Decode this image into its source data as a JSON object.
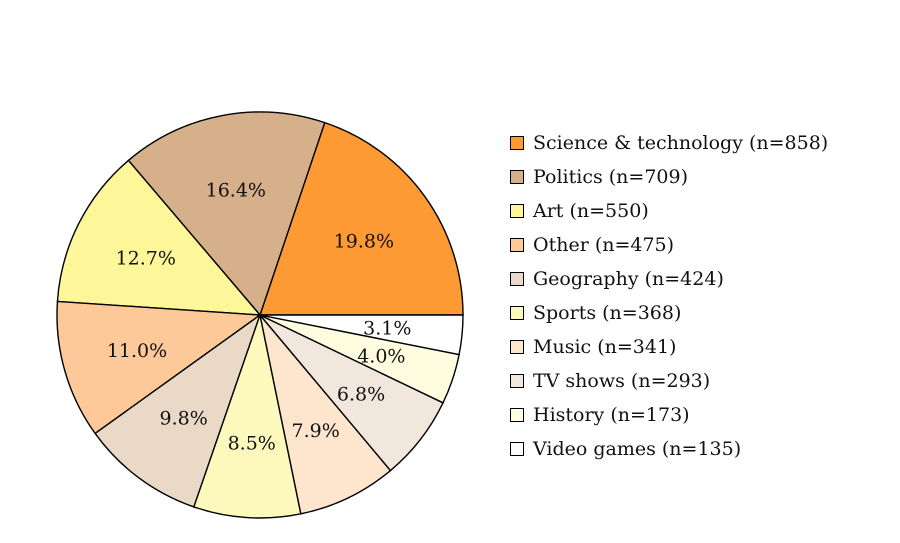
{
  "chart_data": {
    "type": "pie",
    "title": "",
    "start_angle_deg": 0,
    "direction": "counterclockwise",
    "legend_position": "right",
    "slices": [
      {
        "label": "Science & technology (n=858)",
        "category": "Science & technology",
        "n": 858,
        "percent": 19.8,
        "percent_label": "19.8%",
        "color": "#fd9a34"
      },
      {
        "label": "Politics (n=709)",
        "category": "Politics",
        "n": 709,
        "percent": 16.4,
        "percent_label": "16.4%",
        "color": "#d5b08a"
      },
      {
        "label": "Art (n=550)",
        "category": "Art",
        "n": 550,
        "percent": 12.7,
        "percent_label": "12.7%",
        "color": "#fdf79a"
      },
      {
        "label": "Other (n=475)",
        "category": "Other",
        "n": 475,
        "percent": 11.0,
        "percent_label": "11.0%",
        "color": "#fdc999"
      },
      {
        "label": "Geography (n=424)",
        "category": "Geography",
        "n": 424,
        "percent": 9.8,
        "percent_label": "9.8%",
        "color": "#e9d9c6"
      },
      {
        "label": "Sports (n=368)",
        "category": "Sports",
        "n": 368,
        "percent": 8.5,
        "percent_label": "8.5%",
        "color": "#fdf9bc"
      },
      {
        "label": "Music (n=341)",
        "category": "Music",
        "n": 341,
        "percent": 7.9,
        "percent_label": "7.9%",
        "color": "#fee5cd"
      },
      {
        "label": "TV shows (n=293)",
        "category": "TV shows",
        "n": 293,
        "percent": 6.8,
        "percent_label": "6.8%",
        "color": "#f1e7dc"
      },
      {
        "label": "History (n=173)",
        "category": "History",
        "n": 173,
        "percent": 4.0,
        "percent_label": "4.0%",
        "color": "#fefde0"
      },
      {
        "label": "Video games (n=135)",
        "category": "Video games",
        "n": 135,
        "percent": 3.1,
        "percent_label": "3.1%",
        "color": "#ffffff"
      }
    ]
  }
}
